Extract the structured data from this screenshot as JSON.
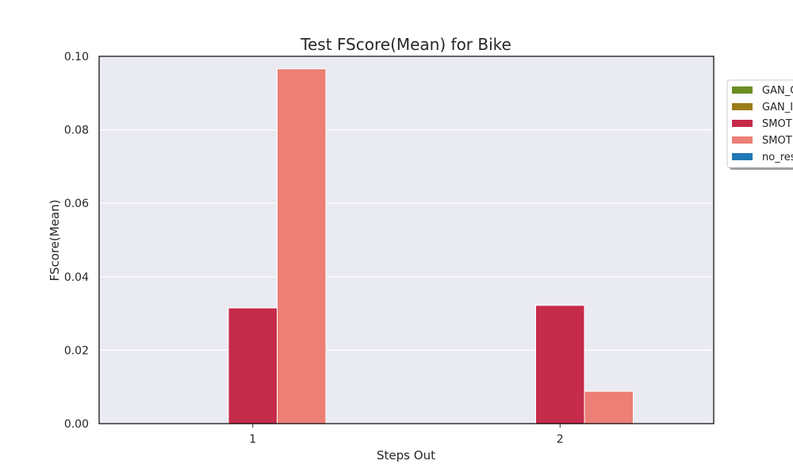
{
  "chart_data": {
    "type": "bar",
    "title": "Test FScore(Mean) for Bike",
    "xlabel": "Steps Out",
    "ylabel": "FScore(Mean)",
    "categories": [
      "1",
      "2"
    ],
    "ylim": [
      0,
      0.1
    ],
    "yticks": [
      "0.00",
      "0.02",
      "0.04",
      "0.06",
      "0.08",
      "0.10"
    ],
    "grid": true,
    "legend_position": "top-right (outside, clipped)",
    "series": [
      {
        "name": "GAN_C",
        "color": "#6b8e23",
        "values": [
          0,
          0
        ]
      },
      {
        "name": "GAN_I",
        "color": "#9a7d1a",
        "values": [
          0,
          0
        ]
      },
      {
        "name": "SMOT",
        "color": "#c52b4a",
        "values": [
          0.0315,
          0.0322
        ]
      },
      {
        "name": "SMOT",
        "color": "#ec7f76",
        "values": [
          0.0966,
          0.0088
        ]
      },
      {
        "name": "no_res",
        "color": "#1f77b4",
        "values": [
          0,
          0
        ]
      }
    ]
  }
}
